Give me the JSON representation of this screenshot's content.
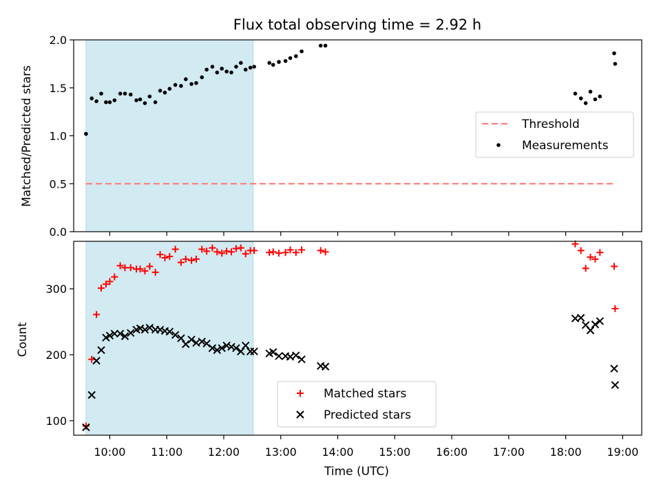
{
  "chart_data": [
    {
      "type": "scatter",
      "title": "Flux total observing time = 2.92 h",
      "xlabel": "",
      "ylabel": "Matched/Predicted stars",
      "xlim": [
        "09:22",
        "19:20"
      ],
      "ylim": [
        0,
        2.0
      ],
      "x_tick_labels": [
        "10:00",
        "11:00",
        "12:00",
        "13:00",
        "14:00",
        "15:00",
        "16:00",
        "17:00",
        "18:00",
        "19:00"
      ],
      "y_ticks": [
        0.0,
        0.5,
        1.0,
        1.5,
        2.0
      ],
      "y_tick_labels": [
        "0.0",
        "0.5",
        "1.0",
        "1.5",
        "2.0"
      ],
      "shaded_region": {
        "x": [
          "09:35",
          "12:31"
        ],
        "color": "#add8e6"
      },
      "legend_position": "center-right",
      "series": [
        {
          "name": "Threshold",
          "style": "dashed-line",
          "color": "#ff7f7f",
          "x": [
            "09:35",
            "18:51"
          ],
          "y": [
            0.5,
            0.5
          ]
        },
        {
          "name": "Measurements",
          "style": "dot",
          "color": "#000000",
          "x": [
            "09:35",
            "09:41",
            "09:46",
            "09:51",
            "09:56",
            "10:00",
            "10:05",
            "10:11",
            "10:16",
            "10:22",
            "10:28",
            "10:32",
            "10:37",
            "10:42",
            "10:48",
            "10:53",
            "10:58",
            "11:03",
            "11:09",
            "11:15",
            "11:20",
            "11:26",
            "11:31",
            "11:37",
            "11:42",
            "11:48",
            "11:53",
            "11:58",
            "12:03",
            "12:08",
            "12:13",
            "12:18",
            "12:23",
            "12:28",
            "12:32",
            "12:48",
            "12:52",
            "12:58",
            "13:05",
            "13:10",
            "13:16",
            "13:22",
            "13:42",
            "13:47",
            "18:10",
            "18:16",
            "18:21",
            "18:26",
            "18:31",
            "18:36",
            "18:51",
            "18:52"
          ],
          "y": [
            1.02,
            1.39,
            1.36,
            1.44,
            1.35,
            1.35,
            1.37,
            1.44,
            1.44,
            1.43,
            1.37,
            1.38,
            1.34,
            1.41,
            1.35,
            1.47,
            1.45,
            1.49,
            1.53,
            1.52,
            1.59,
            1.54,
            1.55,
            1.61,
            1.69,
            1.72,
            1.66,
            1.7,
            1.67,
            1.66,
            1.72,
            1.76,
            1.69,
            1.71,
            1.72,
            1.76,
            1.74,
            1.77,
            1.78,
            1.81,
            1.83,
            1.88,
            1.94,
            1.94,
            1.44,
            1.39,
            1.34,
            1.46,
            1.38,
            1.41,
            1.86,
            1.75
          ]
        }
      ]
    },
    {
      "type": "scatter",
      "title": "",
      "xlabel": "Time (UTC)",
      "ylabel": "Count",
      "xlim": [
        "09:22",
        "19:20"
      ],
      "ylim": [
        78,
        372
      ],
      "x_tick_labels": [
        "10:00",
        "11:00",
        "12:00",
        "13:00",
        "14:00",
        "15:00",
        "16:00",
        "17:00",
        "18:00",
        "19:00"
      ],
      "y_ticks": [
        100,
        200,
        300
      ],
      "y_tick_labels": [
        "100",
        "200",
        "300"
      ],
      "shaded_region": {
        "x": [
          "09:35",
          "12:31"
        ],
        "color": "#add8e6"
      },
      "legend_position": "lower-center",
      "series": [
        {
          "name": "Matched stars",
          "marker": "plus",
          "color": "#ff0000",
          "x": [
            "09:35",
            "09:41",
            "09:46",
            "09:51",
            "09:56",
            "10:00",
            "10:05",
            "10:11",
            "10:16",
            "10:22",
            "10:28",
            "10:32",
            "10:37",
            "10:42",
            "10:48",
            "10:53",
            "10:58",
            "11:03",
            "11:09",
            "11:15",
            "11:20",
            "11:26",
            "11:31",
            "11:37",
            "11:42",
            "11:48",
            "11:53",
            "11:58",
            "12:03",
            "12:08",
            "12:13",
            "12:18",
            "12:23",
            "12:28",
            "12:32",
            "12:48",
            "12:52",
            "12:58",
            "13:05",
            "13:10",
            "13:16",
            "13:22",
            "13:42",
            "13:47",
            "18:10",
            "18:16",
            "18:21",
            "18:26",
            "18:31",
            "18:36",
            "18:51",
            "18:52"
          ],
          "y": [
            92,
            193,
            261,
            301,
            307,
            311,
            318,
            335,
            332,
            332,
            330,
            330,
            327,
            334,
            325,
            352,
            347,
            349,
            360,
            340,
            345,
            343,
            345,
            360,
            357,
            362,
            356,
            354,
            357,
            356,
            361,
            362,
            353,
            358,
            358,
            355,
            356,
            354,
            355,
            359,
            355,
            359,
            358,
            356,
            368,
            358,
            331,
            348,
            345,
            355,
            334,
            270
          ]
        },
        {
          "name": "Predicted stars",
          "marker": "x",
          "color": "#000000",
          "x": [
            "09:35",
            "09:41",
            "09:46",
            "09:51",
            "09:56",
            "10:00",
            "10:05",
            "10:11",
            "10:16",
            "10:22",
            "10:28",
            "10:32",
            "10:37",
            "10:42",
            "10:48",
            "10:53",
            "10:58",
            "11:03",
            "11:09",
            "11:15",
            "11:20",
            "11:26",
            "11:31",
            "11:37",
            "11:42",
            "11:48",
            "11:53",
            "11:58",
            "12:03",
            "12:08",
            "12:13",
            "12:18",
            "12:23",
            "12:28",
            "12:32",
            "12:48",
            "12:52",
            "12:58",
            "13:05",
            "13:10",
            "13:16",
            "13:22",
            "13:42",
            "13:47",
            "18:10",
            "18:16",
            "18:21",
            "18:26",
            "18:31",
            "18:36",
            "18:51",
            "18:52"
          ],
          "y": [
            90,
            139,
            191,
            207,
            226,
            229,
            232,
            232,
            228,
            233,
            238,
            240,
            238,
            241,
            238,
            238,
            236,
            235,
            230,
            225,
            216,
            223,
            218,
            220,
            217,
            210,
            207,
            210,
            214,
            212,
            210,
            205,
            214,
            205,
            205,
            202,
            204,
            198,
            198,
            197,
            199,
            193,
            183,
            182,
            255,
            256,
            245,
            237,
            246,
            251,
            179,
            154
          ]
        }
      ]
    }
  ]
}
